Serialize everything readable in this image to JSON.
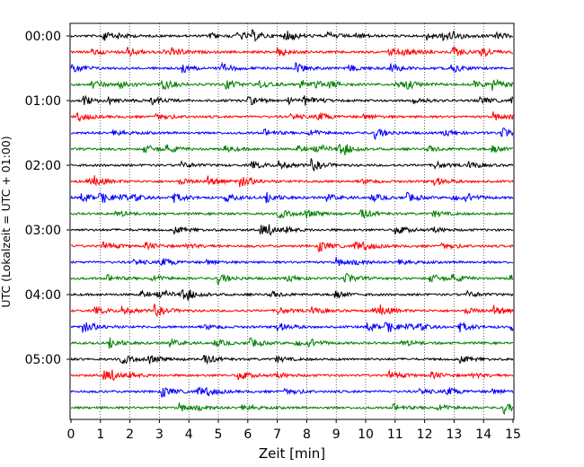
{
  "chart_data": {
    "type": "line",
    "title": "",
    "xlabel": "Zeit  [min]",
    "ylabel": "UTC (Lokalzeit = UTC + 01:00)",
    "xlim": [
      0,
      15
    ],
    "x_ticks": [
      "0",
      "1",
      "2",
      "3",
      "4",
      "5",
      "6",
      "7",
      "8",
      "9",
      "10",
      "11",
      "12",
      "13",
      "14",
      "15"
    ],
    "y_tick_labels": [
      "00:00",
      "01:00",
      "02:00",
      "03:00",
      "04:00",
      "05:00"
    ],
    "grid": "vertical dotted lines at each minute",
    "trace_count": 24,
    "trace_interval": "00:15",
    "trace_colors": [
      "#000000",
      "#ff0000",
      "#0000ff",
      "#008000"
    ],
    "traces_per_hour": 4
  }
}
